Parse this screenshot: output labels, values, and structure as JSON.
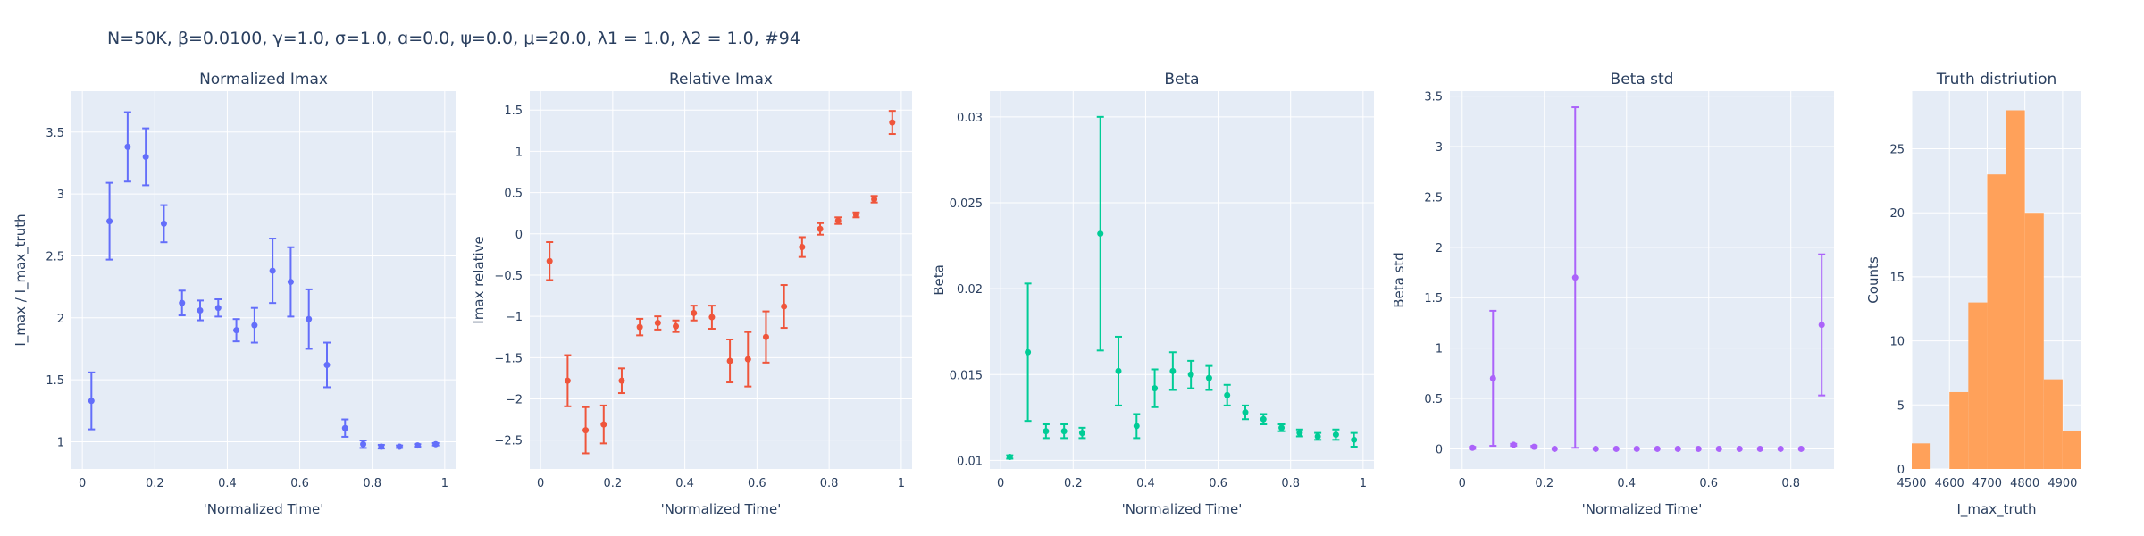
{
  "suptitle": "N=50K, β=0.0100, γ=1.0, σ=1.0,  ɑ=0.0, ψ=0.0, μ=20.0, λ1 = 1.0, λ2 = 1.0, #94",
  "colors": {
    "bg": "#e5ecf6",
    "grid": "#ffffff",
    "text": "#2a3f5f"
  },
  "chart_data": [
    {
      "type": "scatter",
      "title": "Normalized Imax",
      "xlabel": "'Normalized Time'",
      "ylabel": "I_max / I_max_truth",
      "color": "#636efa",
      "xlim": [
        -0.03,
        1.03
      ],
      "ylim": [
        0.78,
        3.83
      ],
      "xticks": [
        0,
        0.2,
        0.4,
        0.6,
        0.8,
        1
      ],
      "xticklabels": [
        "0",
        "0.2",
        "0.4",
        "0.6",
        "0.8",
        "1"
      ],
      "yticks": [
        1,
        1.5,
        2,
        2.5,
        3,
        3.5
      ],
      "yticklabels": [
        "1",
        "1.5",
        "2",
        "2.5",
        "3",
        "3.5"
      ],
      "x": [
        0.025,
        0.075,
        0.125,
        0.175,
        0.225,
        0.275,
        0.325,
        0.375,
        0.425,
        0.475,
        0.525,
        0.575,
        0.625,
        0.675,
        0.725,
        0.775,
        0.825,
        0.875,
        0.925,
        0.975
      ],
      "y": [
        1.33,
        2.78,
        3.38,
        3.3,
        2.76,
        2.12,
        2.06,
        2.08,
        1.9,
        1.94,
        2.38,
        2.29,
        1.99,
        1.62,
        1.11,
        0.98,
        0.96,
        0.96,
        0.97,
        0.98
      ],
      "err": [
        0.23,
        0.31,
        0.28,
        0.23,
        0.15,
        0.1,
        0.08,
        0.07,
        0.09,
        0.14,
        0.26,
        0.28,
        0.24,
        0.18,
        0.07,
        0.03,
        0.015,
        0.01,
        0.01,
        0.01
      ]
    },
    {
      "type": "scatter",
      "title": "Relative Imax",
      "xlabel": "'Normalized Time'",
      "ylabel": "Imax relative",
      "color": "#ef553b",
      "xlim": [
        -0.03,
        1.03
      ],
      "ylim": [
        -2.85,
        1.73
      ],
      "xticks": [
        0,
        0.2,
        0.4,
        0.6,
        0.8,
        1
      ],
      "xticklabels": [
        "0",
        "0.2",
        "0.4",
        "0.6",
        "0.8",
        "1"
      ],
      "yticks": [
        -2.5,
        -2,
        -1.5,
        -1,
        -0.5,
        0,
        0.5,
        1,
        1.5
      ],
      "yticklabels": [
        "−2.5",
        "−2",
        "−1.5",
        "−1",
        "−0.5",
        "0",
        "0.5",
        "1",
        "1.5"
      ],
      "x": [
        0.025,
        0.075,
        0.125,
        0.175,
        0.225,
        0.275,
        0.325,
        0.375,
        0.425,
        0.475,
        0.525,
        0.575,
        0.625,
        0.675,
        0.725,
        0.775,
        0.825,
        0.875,
        0.925,
        0.975
      ],
      "y": [
        -0.33,
        -1.78,
        -2.38,
        -2.31,
        -1.78,
        -1.13,
        -1.08,
        -1.12,
        -0.96,
        -1.01,
        -1.54,
        -1.52,
        -1.25,
        -0.88,
        -0.16,
        0.06,
        0.16,
        0.23,
        0.42,
        1.35
      ],
      "err": [
        0.23,
        0.31,
        0.28,
        0.23,
        0.15,
        0.1,
        0.08,
        0.07,
        0.09,
        0.14,
        0.26,
        0.33,
        0.31,
        0.26,
        0.12,
        0.07,
        0.04,
        0.03,
        0.04,
        0.14
      ]
    },
    {
      "type": "scatter",
      "title": "Beta",
      "xlabel": "'Normalized Time'",
      "ylabel": "Beta",
      "color": "#00cc96",
      "xlim": [
        -0.03,
        1.03
      ],
      "ylim": [
        0.0095,
        0.0315
      ],
      "xticks": [
        0,
        0.2,
        0.4,
        0.6,
        0.8,
        1
      ],
      "xticklabels": [
        "0",
        "0.2",
        "0.4",
        "0.6",
        "0.8",
        "1"
      ],
      "yticks": [
        0.01,
        0.015,
        0.02,
        0.025,
        0.03
      ],
      "yticklabels": [
        "0.01",
        "0.015",
        "0.02",
        "0.025",
        "0.03"
      ],
      "x": [
        0.025,
        0.075,
        0.125,
        0.175,
        0.225,
        0.275,
        0.325,
        0.375,
        0.425,
        0.475,
        0.525,
        0.575,
        0.625,
        0.675,
        0.725,
        0.775,
        0.825,
        0.875,
        0.925,
        0.975
      ],
      "y": [
        0.0102,
        0.0163,
        0.0117,
        0.0117,
        0.0116,
        0.0232,
        0.0152,
        0.012,
        0.0142,
        0.0152,
        0.015,
        0.0148,
        0.0138,
        0.0128,
        0.0124,
        0.0119,
        0.0116,
        0.0114,
        0.0115,
        0.0112
      ],
      "err": [
        0.0001,
        0.004,
        0.0004,
        0.0004,
        0.0003,
        0.0068,
        0.002,
        0.0007,
        0.0011,
        0.0011,
        0.0008,
        0.0007,
        0.0006,
        0.0004,
        0.0003,
        0.0002,
        0.0002,
        0.0002,
        0.0003,
        0.0004
      ]
    },
    {
      "type": "scatter",
      "title": "Beta std",
      "xlabel": "'Normalized Time'",
      "ylabel": "Beta std",
      "color": "#ab63fa",
      "xlim": [
        -0.03,
        0.905
      ],
      "ylim": [
        -0.2,
        3.55
      ],
      "xticks": [
        0,
        0.2,
        0.4,
        0.6,
        0.8
      ],
      "xticklabels": [
        "0",
        "0.2",
        "0.4",
        "0.6",
        "0.8"
      ],
      "yticks": [
        0,
        0.5,
        1,
        1.5,
        2,
        2.5,
        3,
        3.5
      ],
      "yticklabels": [
        "0",
        "0.5",
        "1",
        "1.5",
        "2",
        "2.5",
        "3",
        "3.5"
      ],
      "x": [
        0.025,
        0.075,
        0.125,
        0.175,
        0.225,
        0.275,
        0.325,
        0.375,
        0.425,
        0.475,
        0.525,
        0.575,
        0.625,
        0.675,
        0.725,
        0.775,
        0.825,
        0.875
      ],
      "y": [
        0.01,
        0.7,
        0.04,
        0.02,
        0.0,
        1.7,
        0.0,
        0.0,
        0.0,
        0.0,
        0.0,
        0.0,
        0.0,
        0.0,
        0.0,
        0.0,
        0.0,
        1.23
      ],
      "err": [
        0.01,
        0.67,
        0.01,
        0.01,
        0.0,
        1.69,
        0.0,
        0.0,
        0.0,
        0.0,
        0.0,
        0.0,
        0.0,
        0.0,
        0.0,
        0.0,
        0.0,
        0.7
      ]
    },
    {
      "type": "bar",
      "title": "Truth distriution",
      "xlabel": "I_max_truth",
      "ylabel": "Counts",
      "color": "#ffa15a",
      "xlim": [
        4500,
        4950
      ],
      "ylim": [
        0,
        29.5
      ],
      "xticks": [
        4500,
        4600,
        4700,
        4800,
        4900
      ],
      "xticklabels": [
        "4500",
        "4600",
        "4700",
        "4800",
        "4900"
      ],
      "yticks": [
        0,
        5,
        10,
        15,
        20,
        25
      ],
      "yticklabels": [
        "0",
        "5",
        "10",
        "15",
        "20",
        "25"
      ],
      "bin_width": 50,
      "bin_edges": [
        4500,
        4550,
        4600,
        4650,
        4700,
        4750,
        4800,
        4850,
        4900
      ],
      "values": [
        2,
        0,
        6,
        13,
        23,
        28,
        20,
        7,
        3
      ]
    }
  ]
}
